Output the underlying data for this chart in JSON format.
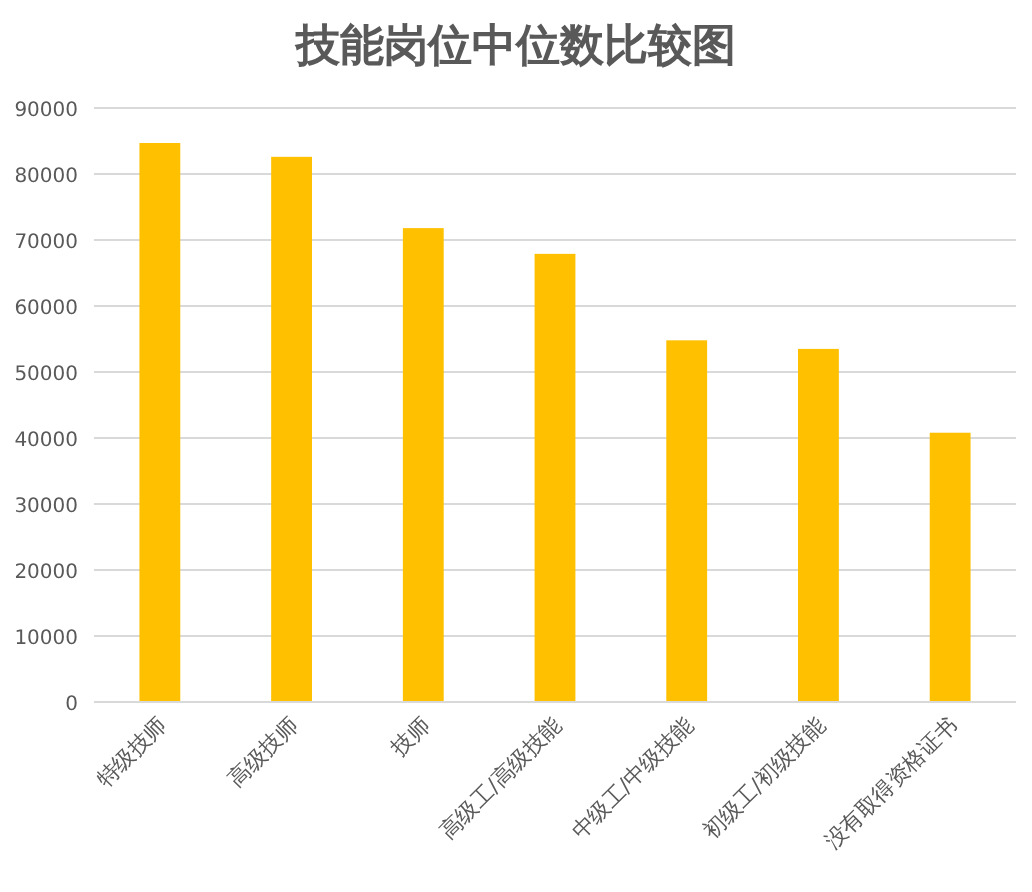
{
  "chart_data": {
    "type": "bar",
    "title": "技能岗位中位数比较图",
    "categories": [
      "特级技师",
      "高级技师",
      "技师",
      "高级工/高级技能",
      "中级工/中级技能",
      "初级工/初级技能",
      "没有取得资格证书"
    ],
    "values": [
      84700,
      82600,
      71800,
      67900,
      54800,
      53500,
      40800
    ],
    "color": "#ffc000",
    "ylim": [
      0,
      90000
    ],
    "yticks": [
      0,
      10000,
      20000,
      30000,
      40000,
      50000,
      60000,
      70000,
      80000,
      90000
    ],
    "grid": "y"
  }
}
